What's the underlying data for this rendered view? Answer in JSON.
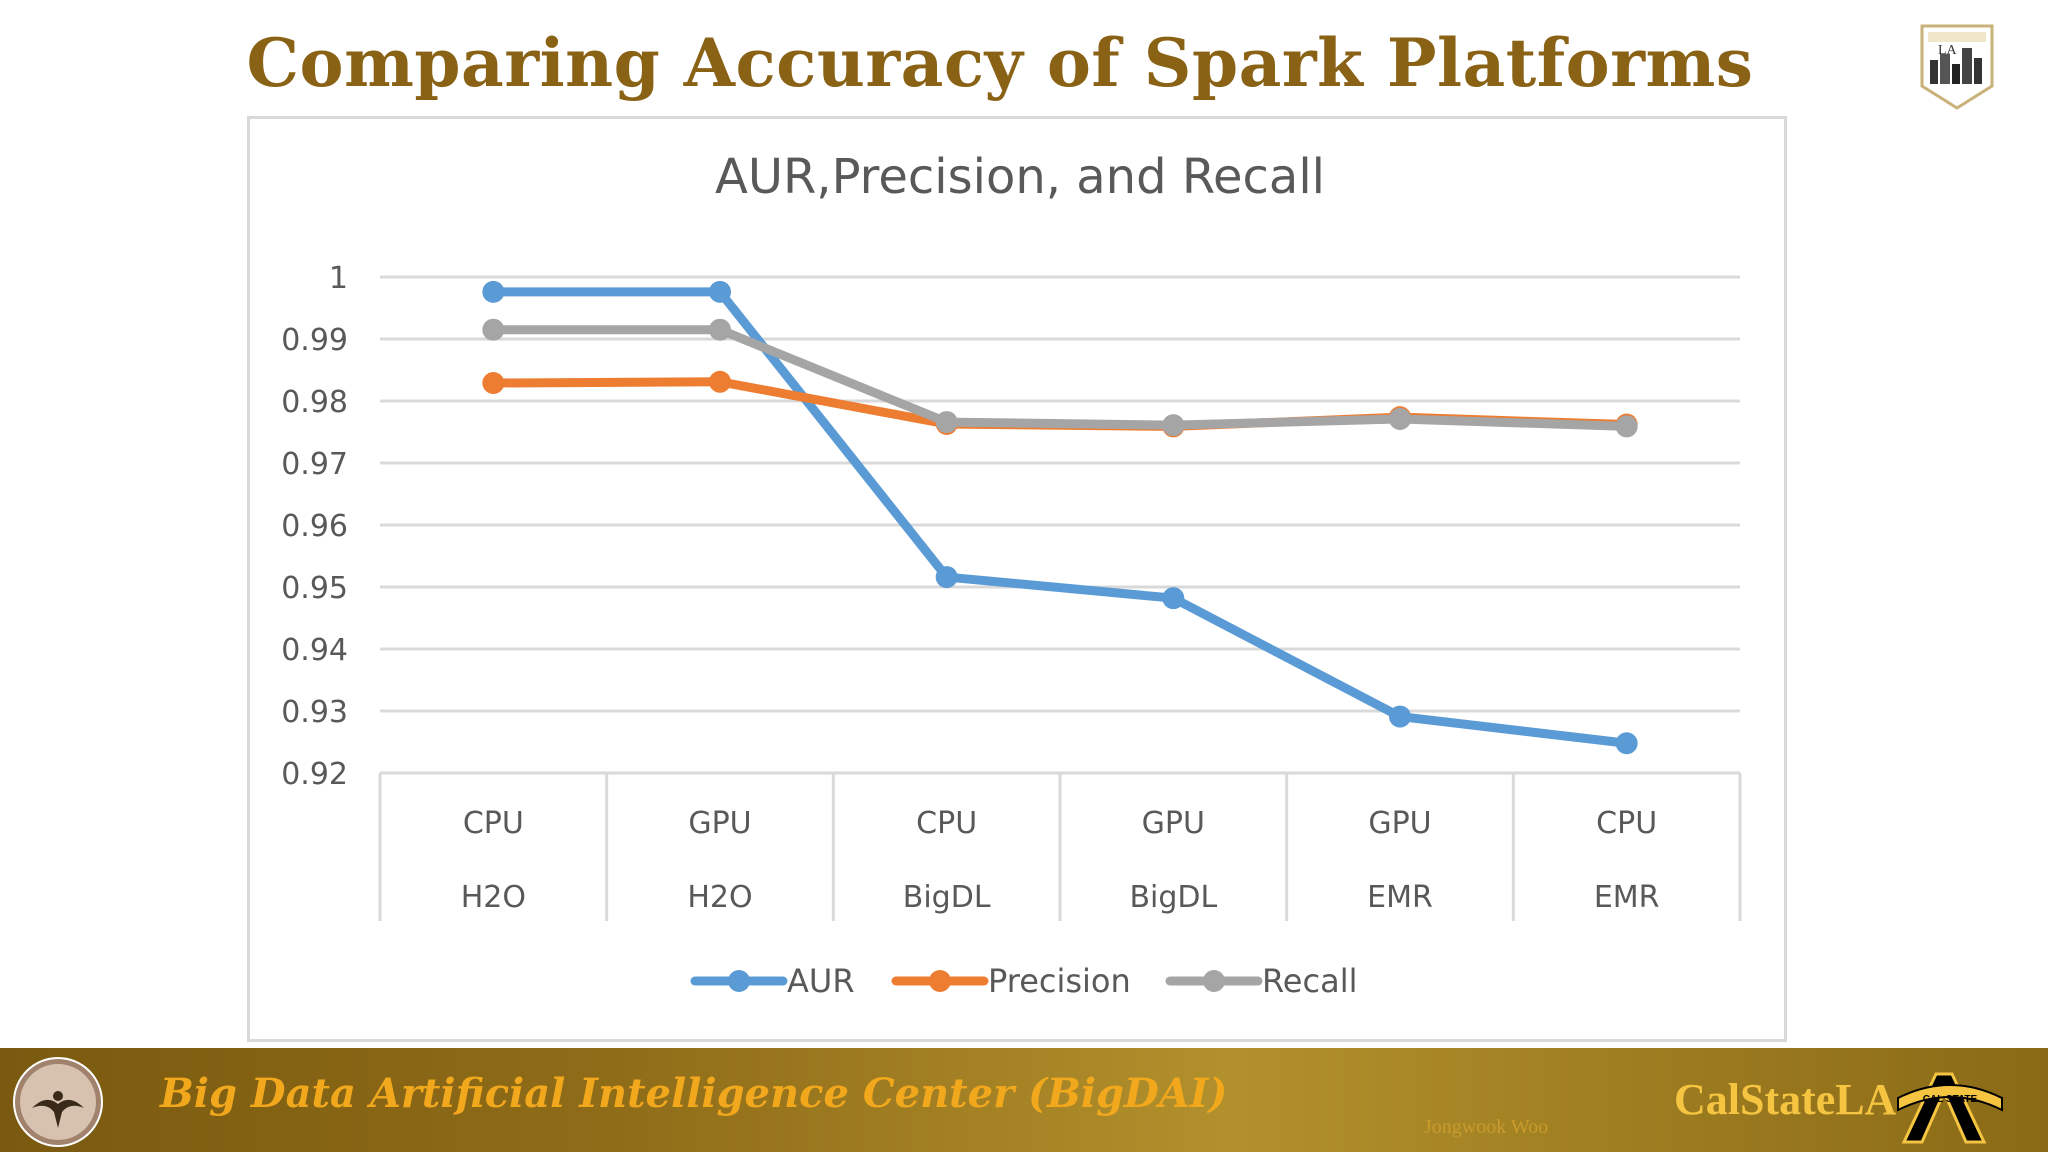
{
  "slide": {
    "title": "Comparing Accuracy of Spark Platforms",
    "top_logo_text": "LA"
  },
  "footer": {
    "center_name": "Big Data Artificial Intelligence Center (BigDAI)",
    "author": "Jongwook Woo",
    "brand": "CalStateLA",
    "logo_text": "CAL STATE"
  },
  "colors": {
    "title": "#8a6215",
    "footer_text": "#f2a81d",
    "brand": "#f5c542",
    "aur": "#5b9bd5",
    "precision": "#ed7d31",
    "recall": "#a5a5a5"
  },
  "chart_data": {
    "type": "line",
    "title": "AUR,Precision, and Recall",
    "categories": [
      [
        "CPU",
        "H2O"
      ],
      [
        "GPU",
        "H2O"
      ],
      [
        "CPU",
        "BigDL"
      ],
      [
        "GPU",
        "BigDL"
      ],
      [
        "GPU",
        "EMR"
      ],
      [
        "CPU",
        "EMR"
      ]
    ],
    "series": [
      {
        "name": "AUR",
        "color": "#5b9bd5",
        "values": [
          0.9976,
          0.9976,
          0.9516,
          0.9482,
          0.9291,
          0.9248
        ]
      },
      {
        "name": "Precision",
        "color": "#ed7d31",
        "values": [
          0.9829,
          0.9831,
          0.9763,
          0.9759,
          0.9774,
          0.9762
        ]
      },
      {
        "name": "Recall",
        "color": "#a5a5a5",
        "values": [
          0.9915,
          0.9915,
          0.9766,
          0.9761,
          0.9771,
          0.9759
        ]
      }
    ],
    "ylim": [
      0.92,
      1.0
    ],
    "yticks": [
      "1",
      "0.99",
      "0.98",
      "0.97",
      "0.96",
      "0.95",
      "0.94",
      "0.93",
      "0.92"
    ],
    "ytick_values": [
      1.0,
      0.99,
      0.98,
      0.97,
      0.96,
      0.95,
      0.94,
      0.93,
      0.92
    ],
    "grid": true,
    "legend": "bottom"
  }
}
